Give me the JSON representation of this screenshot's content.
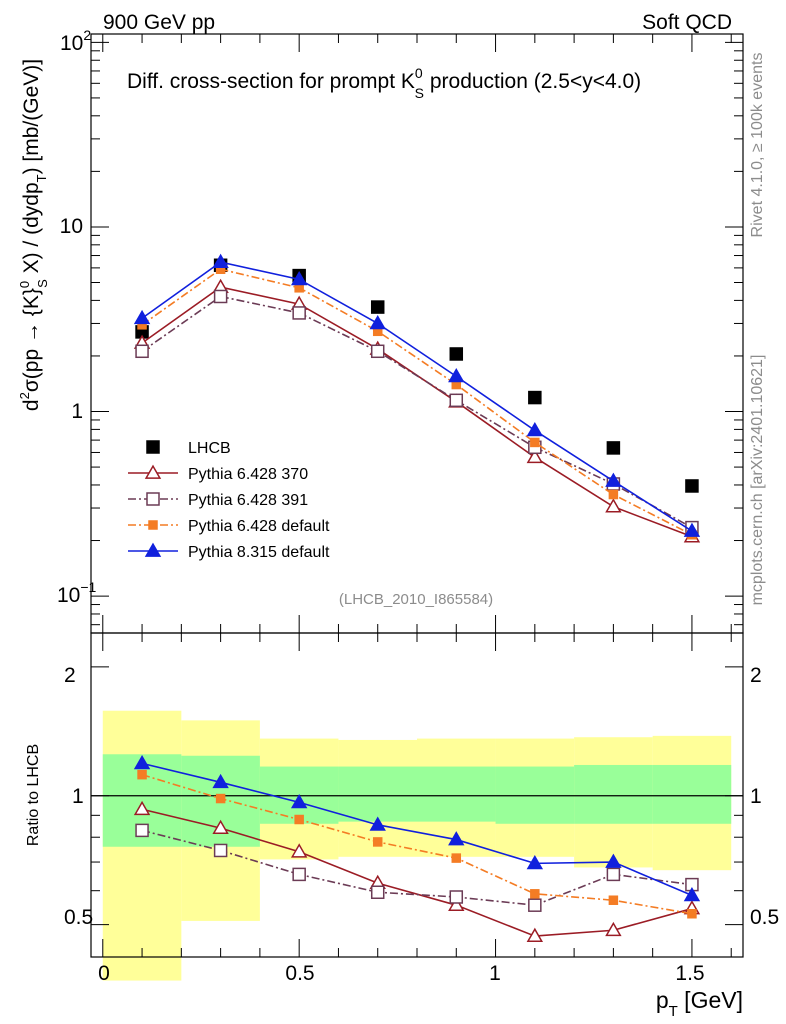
{
  "header": {
    "left": "900 GeV pp",
    "right": "Soft QCD"
  },
  "side": {
    "rivet": "Rivet 4.1.0, ≥ 100k events",
    "mcplots": "mcplots.cern.ch [arXiv:2401.10621]"
  },
  "chart_data": [
    {
      "type": "scatter",
      "title": "Diff. cross-section for prompt K0S production (2.5<y<4.0)",
      "title_parts": {
        "main": "Diff. cross-section for prompt K",
        "sup": "0",
        "sub": "S",
        "tail": " production (2.5<y<4.0)"
      },
      "watermark": "(LHCB_2010_I865584)",
      "ylabel": "d²σ(pp → {K}⁰S X) / (dydpT) [mb/(GeV)]",
      "ylabel_parts": {
        "a": "d",
        "a_sup": "2",
        "b": "σ(pp → {K}",
        "b_sup": "0",
        "b_sub": "S",
        "c": " X) / (dydp",
        "c_sub": "T",
        "d": ") [mb/(GeV)]"
      },
      "yscale": "log",
      "ylim": [
        0.0631,
        111
      ],
      "xlim": [
        -0.03,
        1.63
      ],
      "y_ticks": [
        0.1,
        1,
        10,
        100
      ],
      "y_tick_labels": {
        "base_0": "10",
        "exp_0": "−1",
        "l1": "1",
        "l2": "10",
        "base_3": "10",
        "exp_3": "2"
      },
      "legend_position": "center-left",
      "x": [
        0.1,
        0.3,
        0.5,
        0.7,
        0.9,
        1.1,
        1.3,
        1.5
      ],
      "series": [
        {
          "name": "LHCB",
          "style": "data",
          "color": "#000000",
          "marker": "filled-square",
          "values": [
            2.7,
            6.2,
            5.45,
            3.68,
            2.05,
            1.19,
            0.635,
            0.395
          ]
        },
        {
          "name": "Pythia 6.428 370",
          "style": "solid",
          "color": "#9b1c25",
          "marker": "open-triangle",
          "values": [
            2.35,
            4.72,
            3.82,
            2.18,
            1.13,
            0.565,
            0.305,
            0.21
          ]
        },
        {
          "name": "Pythia 6.428 391",
          "style": "dashdot",
          "color": "#6b3b55",
          "marker": "open-square",
          "values": [
            2.12,
            4.2,
            3.42,
            2.12,
            1.15,
            0.64,
            0.405,
            0.235
          ]
        },
        {
          "name": "Pythia 6.428 default",
          "style": "dashdot",
          "color": "#f47c24",
          "marker": "filled-square",
          "values": [
            2.95,
            5.9,
            4.68,
            2.72,
            1.4,
            0.68,
            0.355,
            0.215
          ]
        },
        {
          "name": "Pythia 8.315 default",
          "style": "solid",
          "color": "#1020dd",
          "marker": "filled-triangle",
          "values": [
            3.2,
            6.45,
            5.2,
            3.0,
            1.55,
            0.79,
            0.42,
            0.225
          ]
        }
      ]
    },
    {
      "type": "line",
      "ylabel": "Ratio to LHCB",
      "xlabel": "pT [GeV]",
      "xlabel_parts": {
        "p": "p",
        "sub": "T",
        "unit": " [GeV]"
      },
      "yscale": "log",
      "ylim": [
        0.42,
        2.4
      ],
      "xlim": [
        -0.03,
        1.63
      ],
      "y_ticks": [
        0.5,
        1,
        2
      ],
      "y_tick_labels": [
        "0.5",
        "1",
        "2"
      ],
      "x_ticks": [
        0,
        0.5,
        1,
        1.5
      ],
      "x_tick_labels": [
        "0",
        "0.5",
        "1",
        "1.5"
      ],
      "reference_line": 1,
      "bins": [
        [
          0,
          0.2
        ],
        [
          0.2,
          0.4
        ],
        [
          0.4,
          0.6
        ],
        [
          0.6,
          0.8
        ],
        [
          0.8,
          1.0
        ],
        [
          1.0,
          1.2
        ],
        [
          1.2,
          1.4
        ],
        [
          1.4,
          1.6
        ]
      ],
      "band_outer": [
        [
          0.37,
          1.58
        ],
        [
          0.51,
          1.5
        ],
        [
          0.71,
          1.36
        ],
        [
          0.72,
          1.35
        ],
        [
          0.72,
          1.36
        ],
        [
          0.72,
          1.36
        ],
        [
          0.68,
          1.37
        ],
        [
          0.67,
          1.38
        ]
      ],
      "band_inner": [
        [
          0.76,
          1.25
        ],
        [
          0.76,
          1.24
        ],
        [
          0.86,
          1.17
        ],
        [
          0.87,
          1.17
        ],
        [
          0.87,
          1.17
        ],
        [
          0.86,
          1.17
        ],
        [
          0.86,
          1.18
        ],
        [
          0.86,
          1.18
        ]
      ],
      "x": [
        0.1,
        0.3,
        0.5,
        0.7,
        0.9,
        1.1,
        1.3,
        1.5
      ],
      "series": [
        {
          "name": "Pythia 6.428 370",
          "values": [
            0.93,
            0.84,
            0.74,
            0.625,
            0.555,
            0.47,
            0.485,
            0.545
          ]
        },
        {
          "name": "Pythia 6.428 391",
          "values": [
            0.83,
            0.745,
            0.655,
            0.595,
            0.58,
            0.555,
            0.655,
            0.62
          ]
        },
        {
          "name": "Pythia 6.428 default",
          "values": [
            1.12,
            0.985,
            0.88,
            0.78,
            0.715,
            0.59,
            0.57,
            0.53
          ]
        },
        {
          "name": "Pythia 8.315 default",
          "values": [
            1.19,
            1.075,
            0.965,
            0.855,
            0.79,
            0.695,
            0.7,
            0.585
          ]
        }
      ]
    }
  ]
}
